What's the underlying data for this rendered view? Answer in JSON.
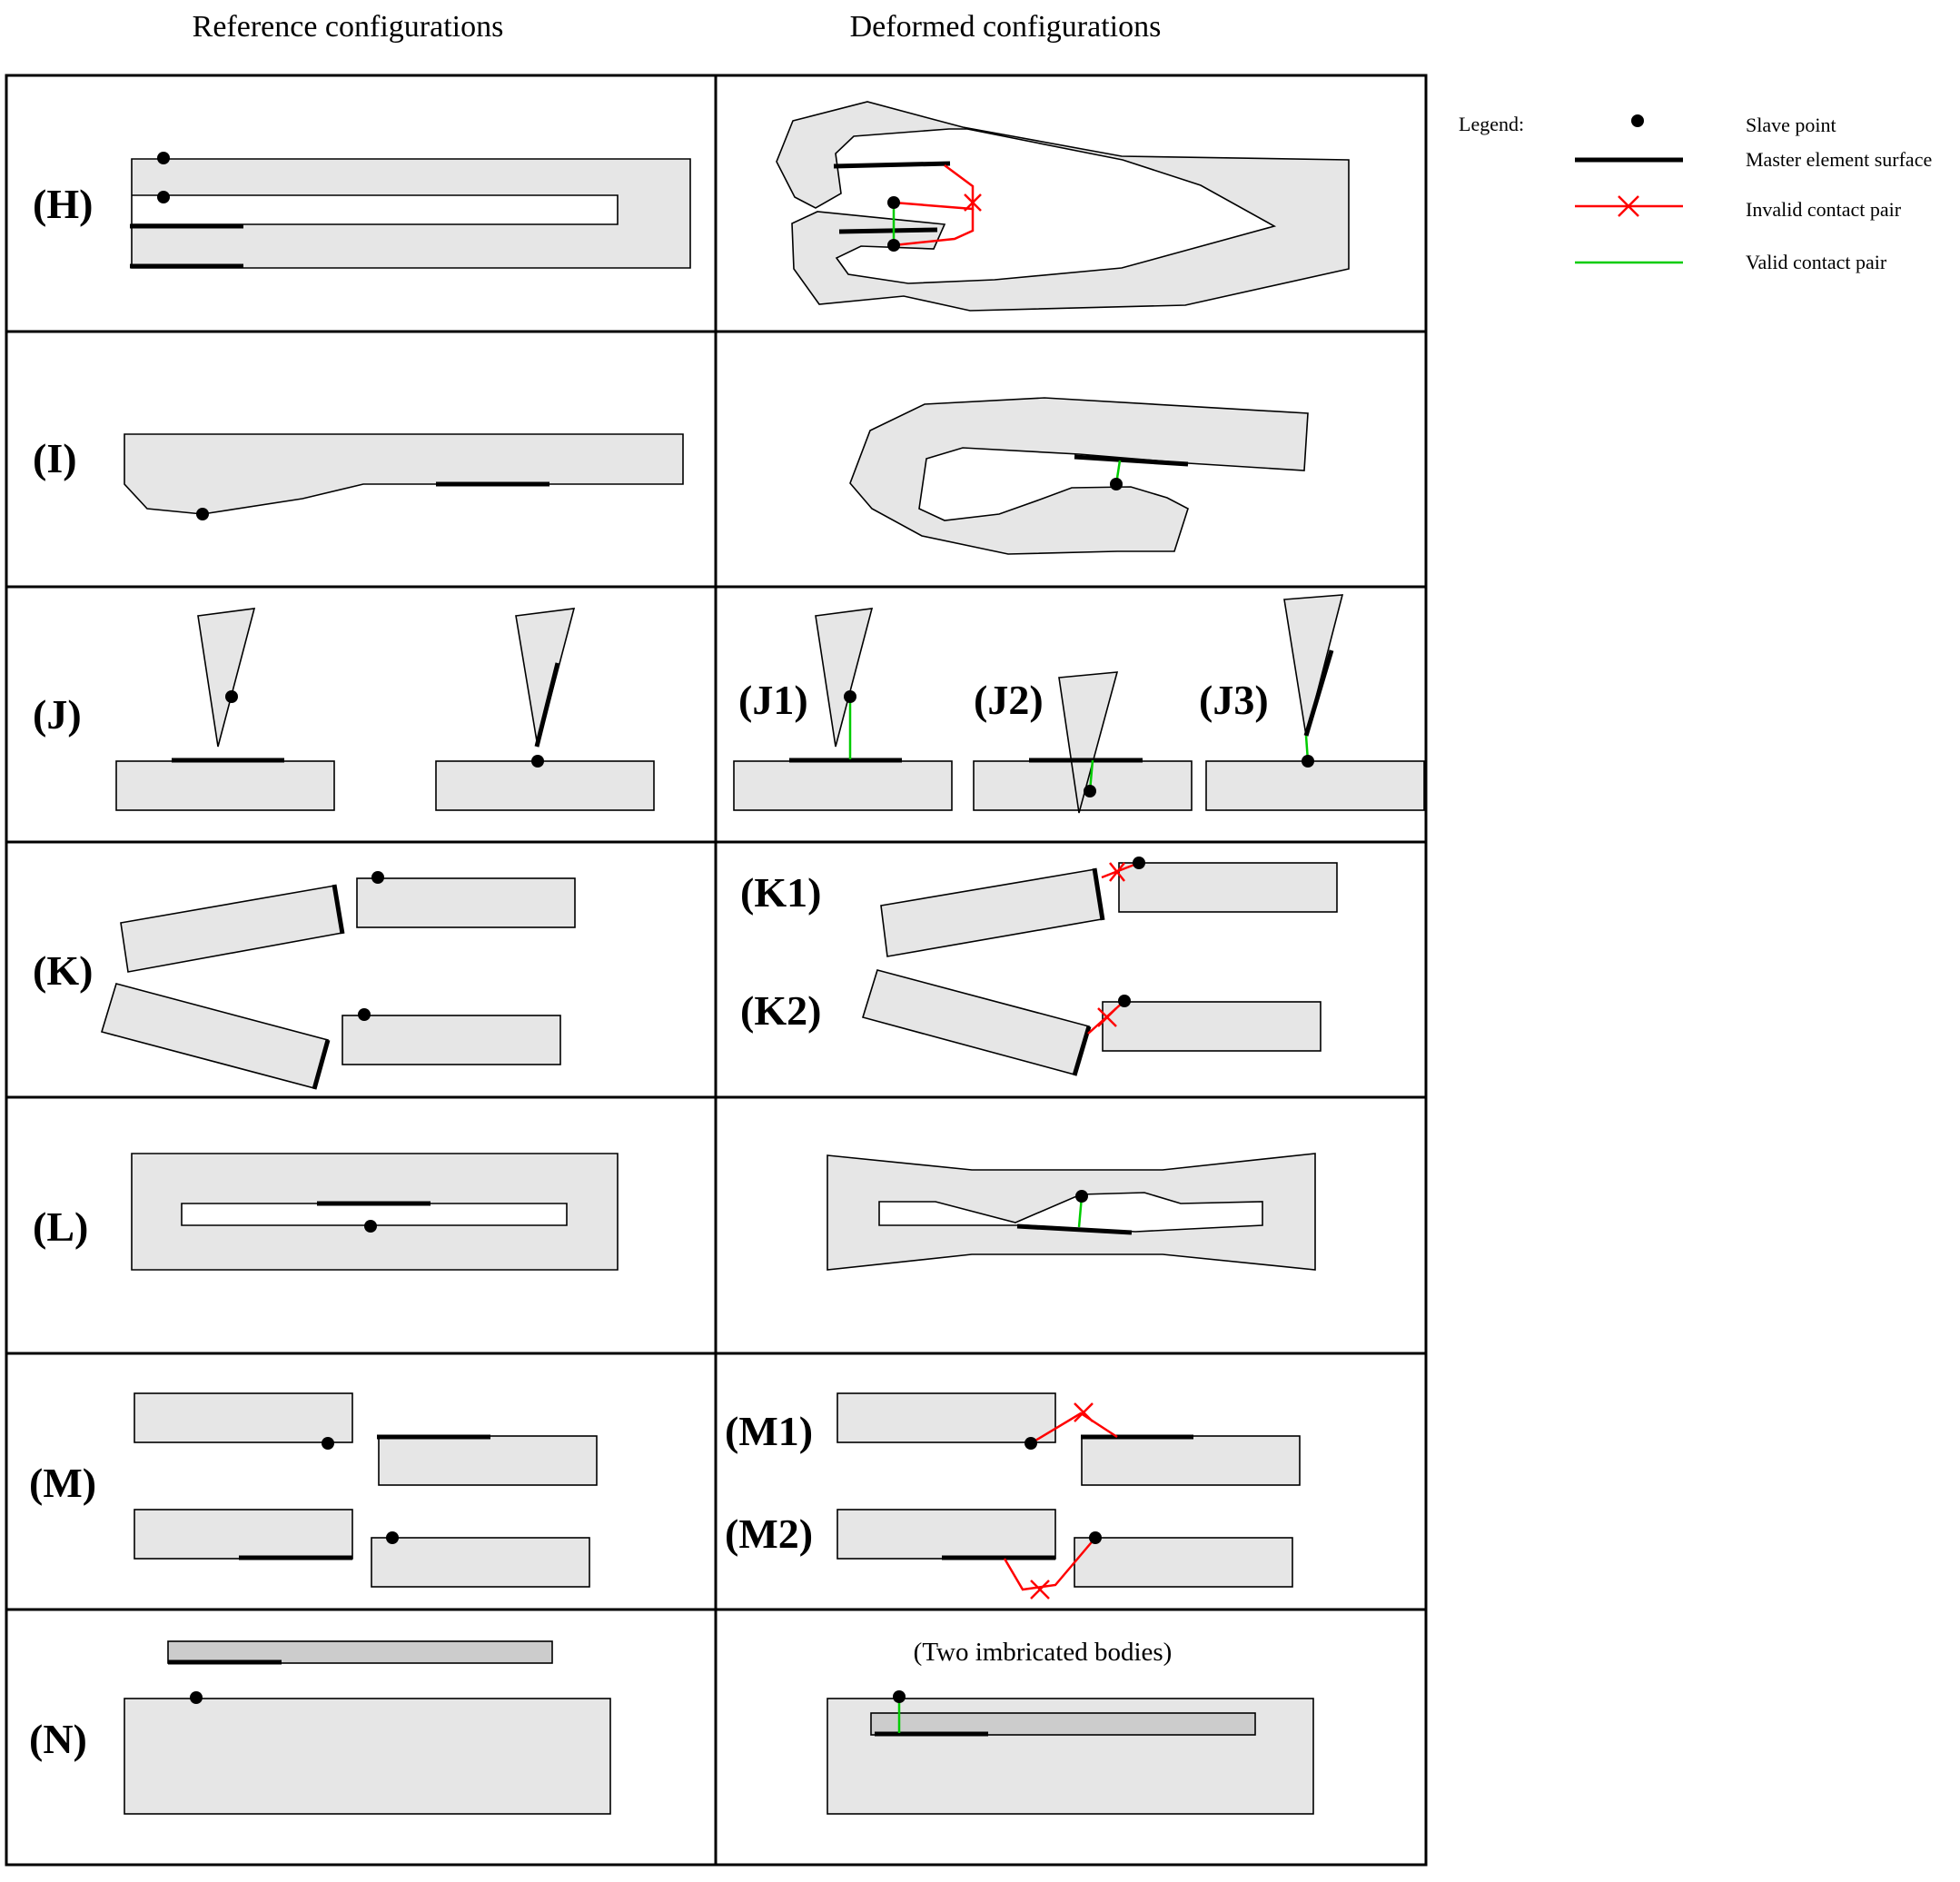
{
  "headers": {
    "reference": "Reference configurations",
    "deformed": "Deformed configurations"
  },
  "rows": {
    "H": "(H)",
    "I": "(I)",
    "J": "(J)",
    "K": "(K)",
    "L": "(L)",
    "M": "(M)",
    "N": "(N)"
  },
  "sublabels": {
    "J1": "(J1)",
    "J2": "(J2)",
    "J3": "(J3)",
    "K1": "(K1)",
    "K2": "(K2)",
    "M1": "(M1)",
    "M2": "(M2)"
  },
  "notes": {
    "imbricated": "(Two imbricated bodies)"
  },
  "legend": {
    "title": "Legend:",
    "slave": "Slave point",
    "master": "Master element surface",
    "invalid": "Invalid contact pair",
    "valid": "Valid contact pair"
  },
  "colors": {
    "body_fill": "#e6e6e6",
    "inner_body_fill": "#cccccc",
    "valid": "#00cc00",
    "invalid": "#ff0000",
    "master": "#000000"
  }
}
